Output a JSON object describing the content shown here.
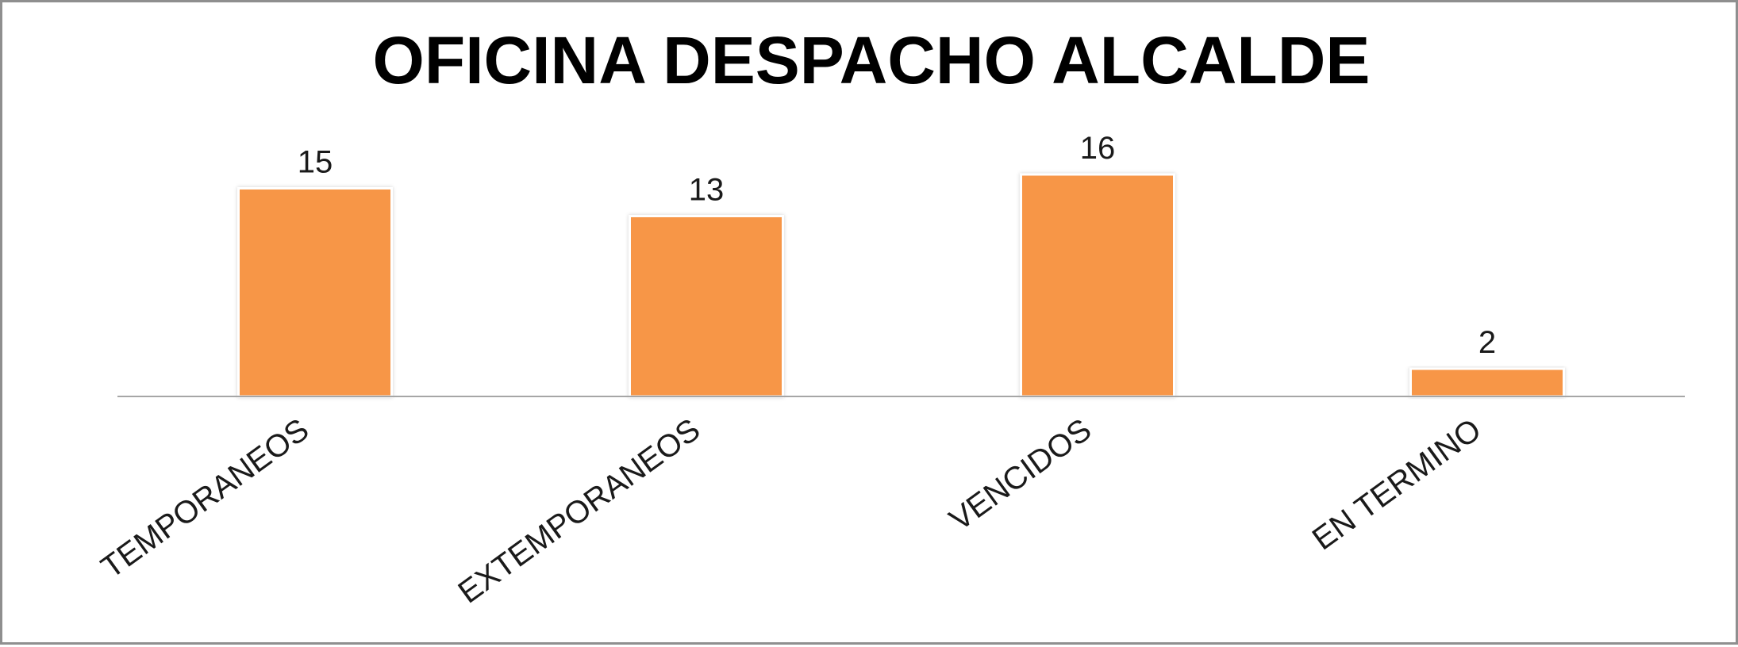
{
  "chart_data": {
    "type": "bar",
    "title": "OFICINA DESPACHO ALCALDE",
    "categories": [
      "TEMPORANEOS",
      "EXTEMPORANEOS",
      "VENCIDOS",
      "EN TERMINO"
    ],
    "values": [
      15,
      13,
      16,
      2
    ],
    "bar_color": "#F79646",
    "axis_color": "#a6a6a6",
    "grid": false,
    "legend": "none",
    "ylim": [
      0,
      16
    ]
  }
}
